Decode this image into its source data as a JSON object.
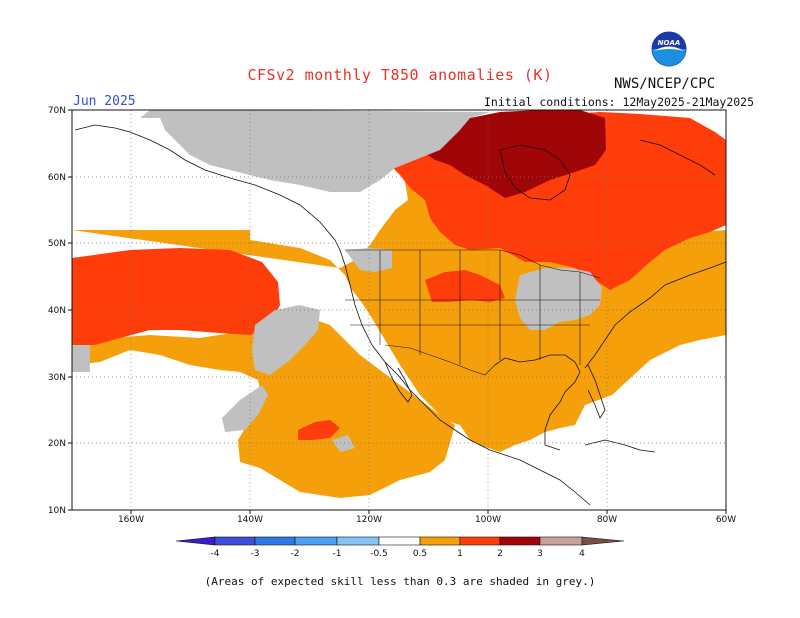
{
  "header": {
    "title": "CFSv2 monthly T850 anomalies (K)",
    "agency": "NWS/NCEP/CPC",
    "logo_text": "NOAA",
    "month": "Jun 2025",
    "initial_conditions": "Initial conditions: 12May2025-21May2025"
  },
  "map": {
    "lat_labels": [
      "70N",
      "60N",
      "50N",
      "40N",
      "30N",
      "20N",
      "10N"
    ],
    "lon_labels": [
      "160W",
      "140W",
      "120W",
      "100W",
      "80W",
      "60W"
    ],
    "colors": {
      "grey_low_skill": "#c0c0c0",
      "anom_0_5_1": "#f5a00a",
      "anom_1_2": "#ff3d0a",
      "anom_2_3": "#a00508",
      "anom_3_4": "#c8a098"
    }
  },
  "colorbar": {
    "labels": [
      "-4",
      "-3",
      "-2",
      "-1",
      "-0.5",
      "0.5",
      "1",
      "2",
      "3",
      "4"
    ],
    "colors": [
      "#3a1fc8",
      "#3b4fd8",
      "#2f78e8",
      "#4aa0f2",
      "#86c2f6",
      "#ffffff",
      "#f5a00a",
      "#ff3d0a",
      "#a00508",
      "#c8a098"
    ]
  },
  "footnote": "(Areas of expected skill less than 0.3 are shaded in grey.)"
}
